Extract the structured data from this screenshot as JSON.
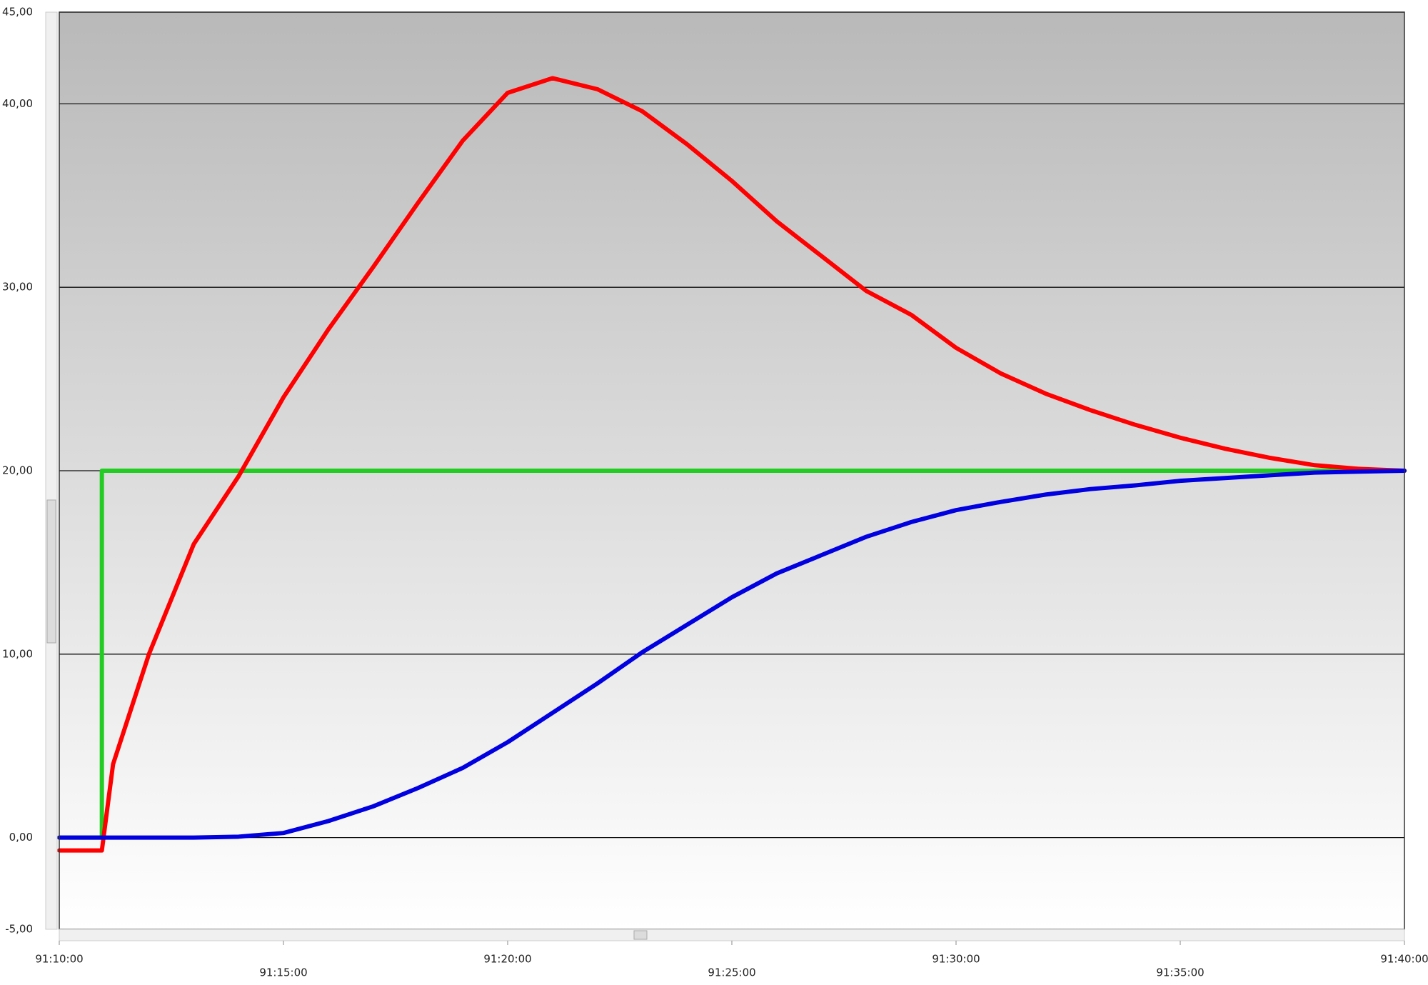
{
  "chart_data": {
    "type": "line",
    "xlim": [
      5470,
      5500
    ],
    "ylim": [
      -5,
      45
    ],
    "grid": true,
    "yticks": [
      {
        "value": -5,
        "label": "-5,00"
      },
      {
        "value": 0,
        "label": "0,00"
      },
      {
        "value": 10,
        "label": "10,00"
      },
      {
        "value": 20,
        "label": "20,00"
      },
      {
        "value": 30,
        "label": "30,00"
      },
      {
        "value": 40,
        "label": "40,00"
      },
      {
        "value": 45,
        "label": "45,00"
      }
    ],
    "xticks": [
      {
        "value": 5470,
        "label": "91:10:00"
      },
      {
        "value": 5475,
        "label": "91:15:00"
      },
      {
        "value": 5480,
        "label": "91:20:00"
      },
      {
        "value": 5485,
        "label": "91:25:00"
      },
      {
        "value": 5490,
        "label": "91:30:00"
      },
      {
        "value": 5495,
        "label": "91:35:00"
      },
      {
        "value": 5500,
        "label": "91:40:00"
      }
    ],
    "series": [
      {
        "color": "#22cc22",
        "x": [
          5470,
          5470.95,
          5470.95,
          5500
        ],
        "values": [
          0,
          0,
          20,
          20
        ]
      },
      {
        "color": "#ff0000",
        "x": [
          5470,
          5470.95,
          5471.2,
          5472,
          5473,
          5474,
          5475,
          5476,
          5477,
          5478,
          5479,
          5480,
          5481,
          5482,
          5483,
          5484,
          5485,
          5486,
          5487,
          5488,
          5489,
          5490,
          5491,
          5492,
          5493,
          5494,
          5495,
          5496,
          5497,
          5498,
          5499,
          5500
        ],
        "values": [
          -0.7,
          -0.7,
          4,
          10,
          16,
          19.7,
          24,
          27.7,
          31.1,
          34.6,
          38,
          40.6,
          41.4,
          40.8,
          39.6,
          37.8,
          35.8,
          33.6,
          31.7,
          29.8,
          28.5,
          26.7,
          25.3,
          24.2,
          23.3,
          22.5,
          21.8,
          21.2,
          20.7,
          20.3,
          20.1,
          20
        ]
      },
      {
        "color": "#0000e0",
        "x": [
          5470,
          5471,
          5472,
          5473,
          5474,
          5475,
          5476,
          5477,
          5478,
          5479,
          5480,
          5481,
          5482,
          5483,
          5484,
          5485,
          5486,
          5487,
          5488,
          5489,
          5490,
          5491,
          5492,
          5493,
          5494,
          5495,
          5496,
          5497,
          5498,
          5499,
          5500
        ],
        "values": [
          0,
          0,
          0,
          0,
          0.05,
          0.25,
          0.9,
          1.7,
          2.7,
          3.8,
          5.2,
          6.8,
          8.4,
          10.1,
          11.6,
          13.1,
          14.4,
          15.4,
          16.4,
          17.2,
          17.85,
          18.3,
          18.7,
          19,
          19.2,
          19.45,
          19.6,
          19.75,
          19.9,
          19.95,
          20
        ]
      }
    ]
  }
}
